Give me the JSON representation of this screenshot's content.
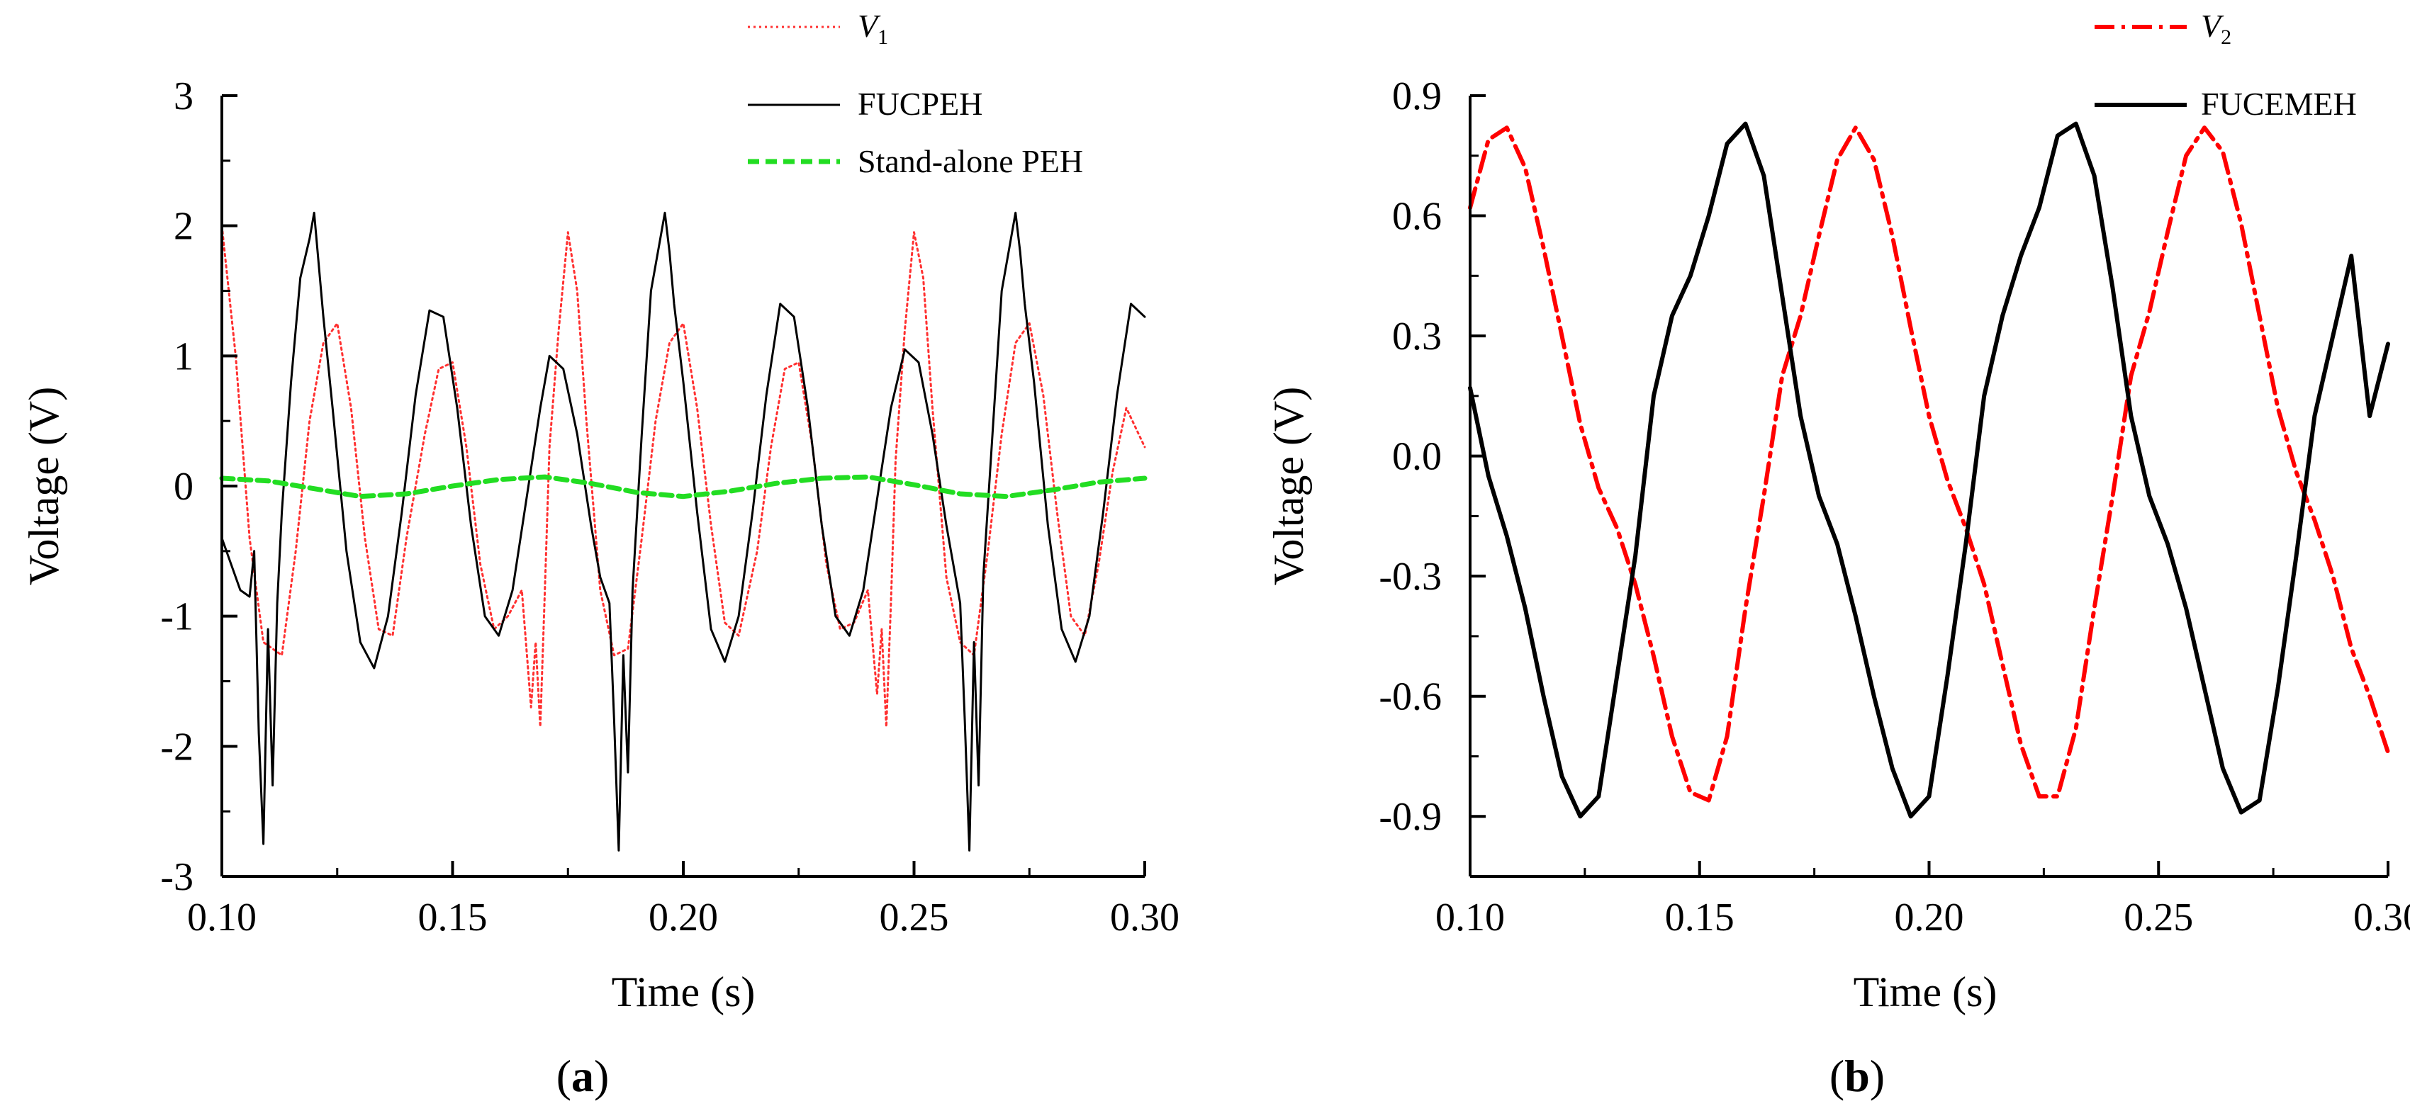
{
  "figure": {
    "panel_a_label": {
      "open": "(",
      "letter": "a",
      "close": ")"
    },
    "panel_b_label": {
      "open": "(",
      "letter": "b",
      "close": ")"
    }
  },
  "colors": {
    "v1": "#ff3030",
    "fucpeh": "#000000",
    "standalone": "#22dd22",
    "v2": "#ff0000",
    "fucemeh": "#000000",
    "axis": "#000000"
  },
  "chart_data": [
    {
      "type": "line",
      "title": "",
      "xlabel": "Time (s)",
      "ylabel": "Voltage (V)",
      "xlim": [
        0.1,
        0.3
      ],
      "ylim": [
        -3,
        3
      ],
      "xticks": [
        "0.10",
        "0.15",
        "0.20",
        "0.25",
        "0.30"
      ],
      "yticks": [
        "3",
        "2",
        "1",
        "0",
        "-1",
        "-2",
        "-3"
      ],
      "legend_position": "top-right",
      "series": [
        {
          "name": "V",
          "name_subscript": "1",
          "style": "dotted",
          "x": [
            0.1,
            0.103,
            0.106,
            0.109,
            0.113,
            0.116,
            0.119,
            0.122,
            0.125,
            0.128,
            0.131,
            0.134,
            0.137,
            0.14,
            0.144,
            0.147,
            0.15,
            0.153,
            0.156,
            0.159,
            0.162,
            0.165,
            0.167,
            0.168,
            0.169,
            0.17,
            0.171,
            0.173,
            0.175,
            0.177,
            0.179,
            0.182,
            0.185,
            0.188,
            0.191,
            0.194,
            0.197,
            0.2,
            0.203,
            0.206,
            0.209,
            0.212,
            0.216,
            0.219,
            0.222,
            0.225,
            0.228,
            0.231,
            0.234,
            0.237,
            0.24,
            0.242,
            0.243,
            0.244,
            0.245,
            0.246,
            0.248,
            0.25,
            0.252,
            0.254,
            0.257,
            0.26,
            0.263,
            0.266,
            0.269,
            0.272,
            0.275,
            0.278,
            0.281,
            0.284,
            0.287,
            0.29,
            0.293,
            0.296,
            0.3
          ],
          "values": [
            2.0,
            1.0,
            -0.4,
            -1.2,
            -1.3,
            -0.5,
            0.5,
            1.1,
            1.25,
            0.6,
            -0.4,
            -1.1,
            -1.15,
            -0.4,
            0.4,
            0.9,
            0.95,
            0.3,
            -0.6,
            -1.1,
            -1.0,
            -0.8,
            -1.7,
            -1.2,
            -1.85,
            -0.8,
            0.3,
            1.2,
            1.95,
            1.5,
            0.5,
            -0.8,
            -1.3,
            -1.25,
            -0.4,
            0.5,
            1.1,
            1.25,
            0.6,
            -0.3,
            -1.05,
            -1.15,
            -0.5,
            0.3,
            0.9,
            0.95,
            0.3,
            -0.6,
            -1.1,
            -1.05,
            -0.8,
            -1.6,
            -1.1,
            -1.85,
            -0.9,
            0.2,
            1.2,
            1.95,
            1.6,
            0.6,
            -0.7,
            -1.2,
            -1.3,
            -0.5,
            0.4,
            1.1,
            1.25,
            0.7,
            -0.2,
            -1.0,
            -1.15,
            -0.6,
            0.1,
            0.6,
            0.3
          ]
        },
        {
          "name": "FUCPEH",
          "style": "solid",
          "x": [
            0.1,
            0.102,
            0.104,
            0.106,
            0.107,
            0.108,
            0.109,
            0.11,
            0.111,
            0.112,
            0.113,
            0.115,
            0.117,
            0.119,
            0.12,
            0.121,
            0.122,
            0.124,
            0.127,
            0.13,
            0.133,
            0.136,
            0.139,
            0.142,
            0.145,
            0.148,
            0.151,
            0.154,
            0.157,
            0.16,
            0.163,
            0.166,
            0.169,
            0.171,
            0.174,
            0.177,
            0.18,
            0.182,
            0.184,
            0.185,
            0.186,
            0.187,
            0.188,
            0.189,
            0.191,
            0.193,
            0.195,
            0.196,
            0.197,
            0.198,
            0.2,
            0.203,
            0.206,
            0.209,
            0.212,
            0.215,
            0.218,
            0.221,
            0.224,
            0.227,
            0.23,
            0.233,
            0.236,
            0.239,
            0.242,
            0.245,
            0.248,
            0.251,
            0.254,
            0.257,
            0.259,
            0.26,
            0.261,
            0.262,
            0.263,
            0.264,
            0.265,
            0.267,
            0.269,
            0.271,
            0.272,
            0.273,
            0.274,
            0.276,
            0.279,
            0.282,
            0.285,
            0.288,
            0.291,
            0.294,
            0.297,
            0.3
          ],
          "values": [
            -0.4,
            -0.6,
            -0.8,
            -0.85,
            -0.5,
            -1.9,
            -2.75,
            -1.1,
            -2.3,
            -0.9,
            -0.2,
            0.8,
            1.6,
            1.9,
            2.1,
            1.7,
            1.3,
            0.6,
            -0.5,
            -1.2,
            -1.4,
            -1.0,
            -0.2,
            0.7,
            1.35,
            1.3,
            0.6,
            -0.3,
            -1.0,
            -1.15,
            -0.8,
            -0.1,
            0.6,
            1.0,
            0.9,
            0.4,
            -0.3,
            -0.7,
            -0.9,
            -1.8,
            -2.8,
            -1.3,
            -2.2,
            -0.8,
            0.4,
            1.5,
            1.9,
            2.1,
            1.8,
            1.4,
            0.8,
            -0.2,
            -1.1,
            -1.35,
            -1.0,
            -0.2,
            0.7,
            1.4,
            1.3,
            0.6,
            -0.3,
            -1.0,
            -1.15,
            -0.8,
            -0.1,
            0.6,
            1.05,
            0.95,
            0.4,
            -0.3,
            -0.7,
            -0.9,
            -1.8,
            -2.8,
            -1.2,
            -2.3,
            -0.7,
            0.4,
            1.5,
            1.9,
            2.1,
            1.8,
            1.4,
            0.8,
            -0.3,
            -1.1,
            -1.35,
            -1.0,
            -0.2,
            0.7,
            1.4,
            1.3
          ]
        },
        {
          "name": "Stand-alone PEH",
          "style": "dashed",
          "x": [
            0.1,
            0.11,
            0.12,
            0.13,
            0.14,
            0.15,
            0.16,
            0.17,
            0.18,
            0.19,
            0.2,
            0.21,
            0.22,
            0.23,
            0.24,
            0.25,
            0.26,
            0.27,
            0.28,
            0.29,
            0.3
          ],
          "values": [
            0.06,
            0.04,
            -0.02,
            -0.08,
            -0.06,
            0.0,
            0.05,
            0.07,
            0.02,
            -0.05,
            -0.08,
            -0.04,
            0.02,
            0.06,
            0.07,
            0.01,
            -0.06,
            -0.08,
            -0.03,
            0.03,
            0.06
          ]
        }
      ]
    },
    {
      "type": "line",
      "title": "",
      "xlabel": "Time (s)",
      "ylabel": "Voltage (V)",
      "xlim": [
        0.1,
        0.3
      ],
      "ylim": [
        -1.05,
        0.9
      ],
      "xticks": [
        "0.10",
        "0.15",
        "0.20",
        "0.25",
        "0.30"
      ],
      "yticks": [
        "0.9",
        "0.6",
        "0.3",
        "0.0",
        "-0.3",
        "-0.6",
        "-0.9"
      ],
      "legend_position": "top-right",
      "series": [
        {
          "name": "V",
          "name_subscript": "2",
          "style": "dash-dot",
          "x": [
            0.1,
            0.104,
            0.108,
            0.112,
            0.116,
            0.12,
            0.124,
            0.128,
            0.132,
            0.136,
            0.14,
            0.144,
            0.148,
            0.152,
            0.156,
            0.16,
            0.164,
            0.168,
            0.172,
            0.176,
            0.18,
            0.184,
            0.188,
            0.192,
            0.196,
            0.2,
            0.204,
            0.208,
            0.212,
            0.216,
            0.22,
            0.224,
            0.228,
            0.232,
            0.236,
            0.24,
            0.244,
            0.248,
            0.252,
            0.256,
            0.26,
            0.264,
            0.268,
            0.272,
            0.276,
            0.28,
            0.284,
            0.288,
            0.292,
            0.296,
            0.3
          ],
          "values": [
            0.62,
            0.79,
            0.82,
            0.72,
            0.52,
            0.3,
            0.08,
            -0.08,
            -0.18,
            -0.32,
            -0.5,
            -0.7,
            -0.84,
            -0.86,
            -0.7,
            -0.38,
            -0.1,
            0.2,
            0.35,
            0.55,
            0.74,
            0.82,
            0.74,
            0.55,
            0.32,
            0.1,
            -0.06,
            -0.18,
            -0.32,
            -0.52,
            -0.72,
            -0.85,
            -0.85,
            -0.68,
            -0.38,
            -0.1,
            0.2,
            0.36,
            0.56,
            0.75,
            0.82,
            0.76,
            0.58,
            0.35,
            0.12,
            -0.04,
            -0.16,
            -0.3,
            -0.48,
            -0.6,
            -0.74
          ]
        },
        {
          "name": "FUCEMEH",
          "style": "solid",
          "x": [
            0.1,
            0.104,
            0.108,
            0.112,
            0.116,
            0.12,
            0.124,
            0.128,
            0.132,
            0.136,
            0.14,
            0.144,
            0.148,
            0.152,
            0.156,
            0.16,
            0.164,
            0.168,
            0.172,
            0.176,
            0.18,
            0.184,
            0.188,
            0.192,
            0.196,
            0.2,
            0.204,
            0.208,
            0.212,
            0.216,
            0.22,
            0.224,
            0.228,
            0.232,
            0.236,
            0.24,
            0.244,
            0.248,
            0.252,
            0.256,
            0.26,
            0.264,
            0.268,
            0.272,
            0.276,
            0.28,
            0.284,
            0.288,
            0.292,
            0.296,
            0.3
          ],
          "values": [
            0.17,
            -0.05,
            -0.2,
            -0.38,
            -0.6,
            -0.8,
            -0.9,
            -0.85,
            -0.55,
            -0.25,
            0.15,
            0.35,
            0.45,
            0.6,
            0.78,
            0.83,
            0.7,
            0.4,
            0.1,
            -0.1,
            -0.22,
            -0.4,
            -0.6,
            -0.78,
            -0.9,
            -0.85,
            -0.55,
            -0.22,
            0.15,
            0.35,
            0.5,
            0.62,
            0.8,
            0.83,
            0.7,
            0.42,
            0.1,
            -0.1,
            -0.22,
            -0.38,
            -0.58,
            -0.78,
            -0.89,
            -0.86,
            -0.58,
            -0.25,
            0.1,
            0.3,
            0.5,
            0.1,
            0.28
          ]
        }
      ]
    }
  ]
}
